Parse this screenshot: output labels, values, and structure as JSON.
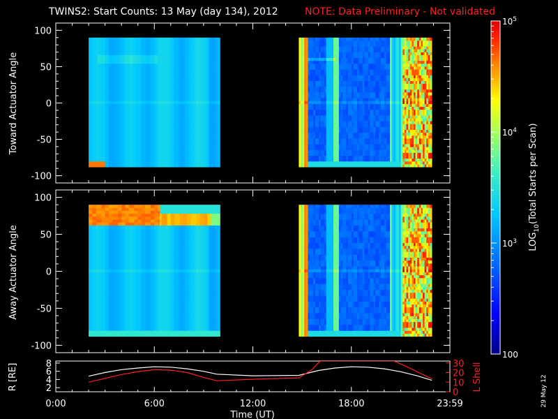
{
  "header": {
    "title": "TWINS2: Start Counts: 13 May (day 134), 2012",
    "note": "NOTE: Data Preliminary - Not validated"
  },
  "colors": {
    "background": "#000000",
    "text": "#ffffff",
    "note": "#ff2020",
    "lshell_line": "#ff2020",
    "r_line": "#ffffff"
  },
  "side_label": "29 May 12",
  "chart_data": [
    {
      "type": "heatmap",
      "ylabel": "Toward Actuator Angle",
      "ylim": [
        -110,
        110
      ],
      "yticks": [
        "100",
        "50",
        "0",
        "-50",
        "-100"
      ],
      "x_unit": "hours UT",
      "xlim": [
        0,
        24
      ],
      "data_intervals_hours": [
        [
          2.0,
          10.0
        ],
        [
          14.8,
          22.9
        ]
      ],
      "angle_range": [
        -88,
        90
      ],
      "note": "log-scaled start counts per scan"
    },
    {
      "type": "heatmap",
      "ylabel": "Away Actuator Angle",
      "ylim": [
        -110,
        110
      ],
      "yticks": [
        "100",
        "50",
        "0",
        "-50",
        "-100"
      ],
      "x_unit": "hours UT",
      "xlim": [
        0,
        24
      ],
      "data_intervals_hours": [
        [
          2.0,
          10.0
        ],
        [
          14.8,
          22.9
        ]
      ],
      "angle_range": [
        -88,
        90
      ]
    },
    {
      "type": "line",
      "ylabel": "R [RE]",
      "ylabel_right": "L Shell",
      "xlabel": "Time (UT)",
      "xlim": [
        0,
        24
      ],
      "xtick_labels": [
        "0:00",
        "6:00",
        "12:00",
        "18:00",
        "23:59"
      ],
      "yticks_left": [
        "8",
        "6",
        "4",
        "2"
      ],
      "yticks_right": [
        "30",
        "20",
        "10",
        "0"
      ],
      "ylim_left": [
        1,
        8.5
      ],
      "ylim_right": [
        0,
        32
      ],
      "series": [
        {
          "name": "R",
          "x": [
            2.0,
            3.0,
            4.0,
            5.0,
            6.0,
            7.0,
            8.0,
            9.0,
            9.8,
            12.0,
            14.8,
            16.0,
            17.0,
            18.0,
            19.0,
            20.0,
            21.0,
            22.0,
            22.9
          ],
          "values": [
            4.8,
            5.7,
            6.4,
            6.8,
            7.1,
            7.0,
            6.6,
            6.0,
            5.3,
            4.9,
            5.0,
            6.2,
            6.8,
            7.1,
            7.0,
            6.6,
            5.9,
            4.9,
            3.8
          ]
        },
        {
          "name": "L Shell",
          "x": [
            2.0,
            3.0,
            4.0,
            5.0,
            6.0,
            7.0,
            8.0,
            9.0,
            9.8,
            12.0,
            14.8,
            15.6,
            16.1,
            20.6,
            21.4,
            22.1,
            22.9
          ],
          "values": [
            10.0,
            14.0,
            18.0,
            21.0,
            23.0,
            22.5,
            20.0,
            15.0,
            11.5,
            13.0,
            14.5,
            23.0,
            32.0,
            32.0,
            26.0,
            20.0,
            13.5
          ]
        }
      ]
    }
  ],
  "colorbar": {
    "label": "LOG10(Total Starts per Scan)",
    "label_main": "LOG",
    "label_sub": "10",
    "label_rest": "(Total Starts per Scan)",
    "ticks": [
      {
        "value": 100,
        "mant": "",
        "base": "100",
        "exp": ""
      },
      {
        "value": 1000,
        "mant": "",
        "base": "10",
        "exp": "3"
      },
      {
        "value": 10000,
        "mant": "",
        "base": "10",
        "exp": "4"
      },
      {
        "value": 100000,
        "mant": "",
        "base": "10",
        "exp": "5"
      }
    ],
    "range": [
      100,
      100000
    ],
    "scale": "log"
  }
}
